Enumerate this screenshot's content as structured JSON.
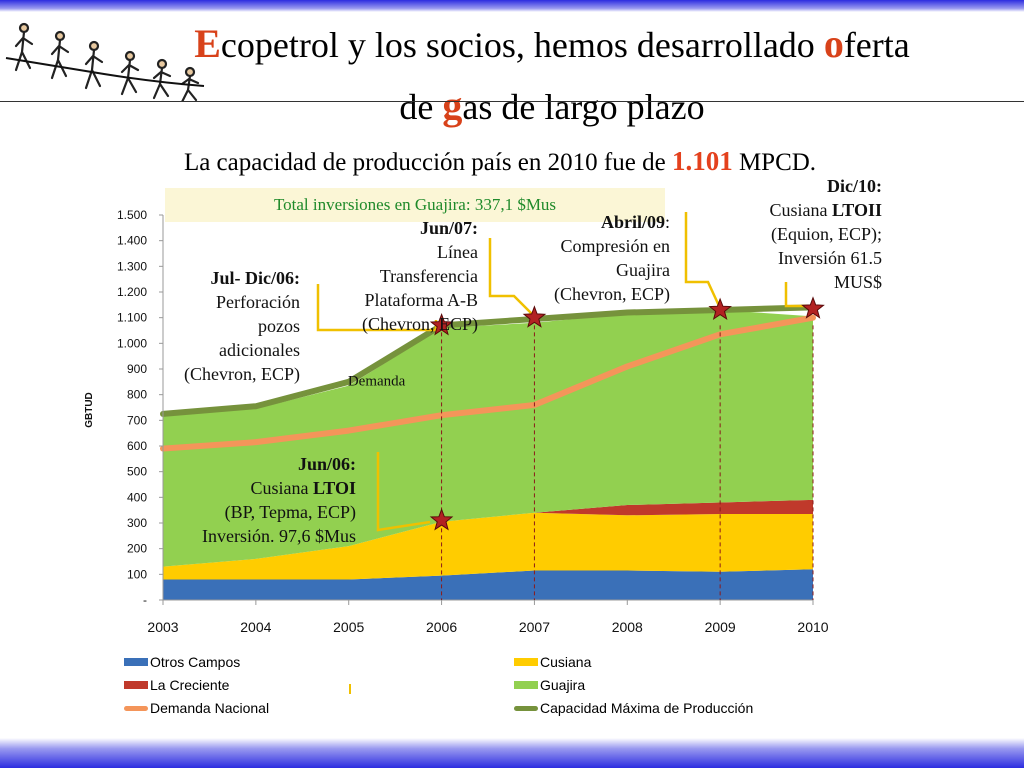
{
  "slide": {
    "title_initial_1": "E",
    "title_rest_1": "copetrol y los socios, hemos desarrollado ",
    "title_initial_2": "o",
    "title_rest_2": "ferta",
    "title_pre_3": "de ",
    "title_initial_3": "g",
    "title_rest_3": "as de largo plazo",
    "subtitle_pre": "La capacidad de producción país en 2010 fue de ",
    "subtitle_value": "1.101",
    "subtitle_post": " MPCD.",
    "investment_box": "Total inversiones en Guajira:  337,1 $Mus",
    "colors": {
      "band": "#2c2ce0",
      "accent": "#d8421a",
      "box_bg": "#fbf6d6",
      "box_text": "#1f8a2a",
      "callout_line": "#f0c000"
    }
  },
  "annotations": {
    "jul_dic_06": {
      "date": "Jul- Dic/06:",
      "l1": "Perforación",
      "l2": "pozos",
      "l3": "adicionales",
      "l4": "(Chevron, ECP)"
    },
    "jun_07": {
      "date": "Jun/07:",
      "l1": "Línea",
      "l2": "Transferencia",
      "l3": "Plataforma A-B",
      "l4": "(Chevron, ECP)"
    },
    "abril_09": {
      "date": "Abril/09",
      "date_tail": ":",
      "l1": "Compresión en",
      "l2": "Guajira",
      "l3": "(Chevron, ECP)"
    },
    "dic_10": {
      "date": "Dic/10:",
      "l1_pre": "Cusiana ",
      "l1_bold": "LTOII",
      "l2": "(Equion, ECP);",
      "l3": "Inversión 61.5",
      "l4": "MUS$"
    },
    "jun_06": {
      "date": "Jun/06:",
      "l1_pre": "Cusiana ",
      "l1_bold": "LTOI",
      "l2": "(BP, Tepma, ECP)",
      "l3": "Inversión. 97,6 $Mus"
    }
  },
  "chart_data": {
    "type": "area",
    "title": "",
    "xlabel": "",
    "ylabel": "GBTUD",
    "x": [
      2003,
      2004,
      2005,
      2006,
      2007,
      2008,
      2009,
      2010
    ],
    "ylim": [
      0,
      1500
    ],
    "yticks": [
      0,
      100,
      200,
      300,
      400,
      500,
      600,
      700,
      800,
      900,
      1000,
      1100,
      1200,
      1300,
      1400,
      1500
    ],
    "ytick_labels": [
      "-",
      "100",
      "200",
      "300",
      "400",
      "500",
      "600",
      "700",
      "800",
      "900",
      "1.000",
      "1.100",
      "1.200",
      "1.300",
      "1.400",
      "1.500"
    ],
    "stacked": true,
    "series": [
      {
        "name": "Otros Campos",
        "kind": "area",
        "color": "#3a70b8",
        "values": [
          80,
          80,
          80,
          95,
          115,
          115,
          110,
          120
        ]
      },
      {
        "name": "Cusiana",
        "kind": "area",
        "color": "#ffcc00",
        "values": [
          50,
          80,
          130,
          210,
          225,
          215,
          225,
          215
        ]
      },
      {
        "name": "La Creciente",
        "kind": "area",
        "color": "#c0392b",
        "values": [
          0,
          0,
          0,
          0,
          0,
          40,
          45,
          55
        ]
      },
      {
        "name": "Guajira",
        "kind": "area",
        "color": "#92d050",
        "values": [
          585,
          585,
          625,
          755,
          740,
          745,
          750,
          715
        ]
      },
      {
        "name": "Demanda Nacional",
        "kind": "line",
        "color": "#f4955a",
        "values": [
          590,
          615,
          660,
          720,
          760,
          910,
          1035,
          1100
        ]
      },
      {
        "name": "Capacidad Máxima de Producción",
        "kind": "line",
        "color": "#76923c",
        "values": [
          725,
          755,
          850,
          1070,
          1095,
          1120,
          1130,
          1140
        ]
      }
    ],
    "series_label": "Demanda",
    "markers": {
      "kind": "star",
      "color": "#b22222",
      "points": [
        [
          2006,
          310
        ],
        [
          2006,
          1070
        ],
        [
          2007,
          1100
        ],
        [
          2009,
          1130
        ],
        [
          2010,
          1135
        ]
      ]
    },
    "legend": "bottom",
    "grid": false
  }
}
